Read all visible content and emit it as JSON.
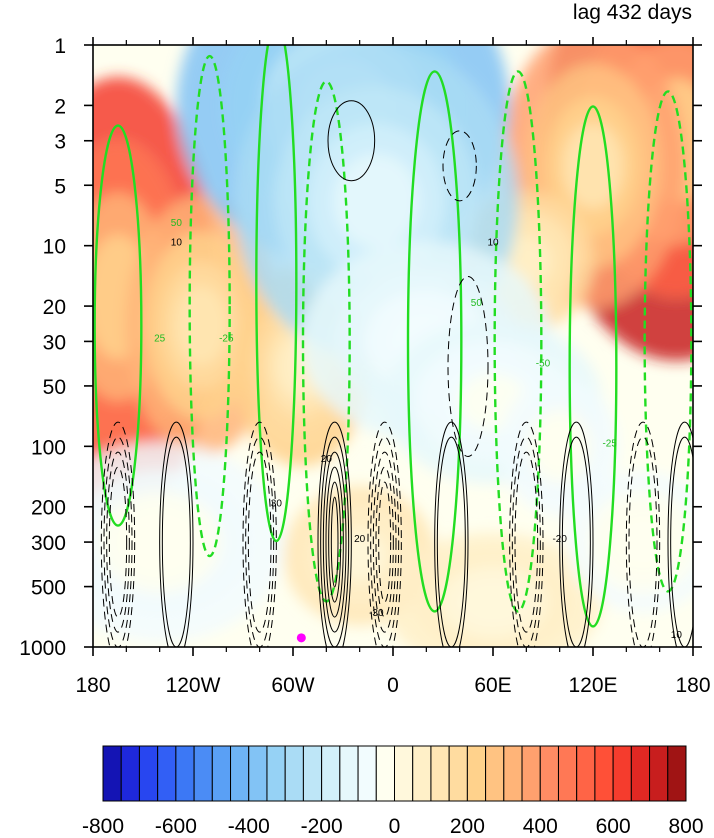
{
  "chart_data": {
    "type": "heatmap",
    "title": "lag 432 days",
    "x_ticks": [
      "180",
      "120W",
      "60W",
      "0",
      "60E",
      "120E",
      "180"
    ],
    "x_values": [
      -180,
      -120,
      -60,
      0,
      60,
      120,
      180
    ],
    "xlim": [
      -180,
      180
    ],
    "y_ticks": [
      "1",
      "2",
      "3",
      "5",
      "10",
      "20",
      "30",
      "50",
      "100",
      "200",
      "300",
      "500",
      "1000"
    ],
    "y_values": [
      1,
      2,
      3,
      5,
      10,
      20,
      30,
      50,
      100,
      200,
      300,
      500,
      1000
    ],
    "ylim": [
      1000,
      1
    ],
    "y_scale": "log",
    "colorbar": {
      "labels": [
        "-800",
        "-600",
        "-400",
        "-200",
        "0",
        "200",
        "400",
        "600",
        "800"
      ],
      "values": [
        -800,
        -600,
        -400,
        -200,
        0,
        200,
        400,
        600,
        800
      ],
      "levels": [
        -800,
        -750,
        -700,
        -650,
        -600,
        -550,
        -500,
        -450,
        -400,
        -350,
        -300,
        -250,
        -200,
        -150,
        -100,
        -50,
        0,
        50,
        100,
        150,
        200,
        250,
        300,
        350,
        400,
        450,
        500,
        550,
        600,
        650,
        700,
        750,
        800
      ],
      "colors": [
        "#1414b4",
        "#1e28dc",
        "#2846f0",
        "#325ff5",
        "#3c78f5",
        "#4b8cf5",
        "#5aa0f5",
        "#6eb4f5",
        "#82c3f5",
        "#96d2f5",
        "#aadcf5",
        "#bee6f7",
        "#d2f0fa",
        "#e6f8fc",
        "#f2fcfe",
        "#fffff0",
        "#fff8dc",
        "#fff0c8",
        "#ffe6b4",
        "#ffdca0",
        "#ffd28c",
        "#ffc382",
        "#ffb478",
        "#ffa06e",
        "#ff8c64",
        "#ff7855",
        "#ff6446",
        "#ff5037",
        "#f53c2d",
        "#e12823",
        "#c81e1e",
        "#a01414"
      ]
    },
    "contour_labels_black": [
      "10",
      "-10",
      "20",
      "-20",
      "30",
      "-30"
    ],
    "contour_labels_green": [
      "25",
      "-25",
      "50",
      "-50"
    ],
    "marker": {
      "lon": -55,
      "pressure": 900,
      "color": "#ff00ff"
    }
  }
}
